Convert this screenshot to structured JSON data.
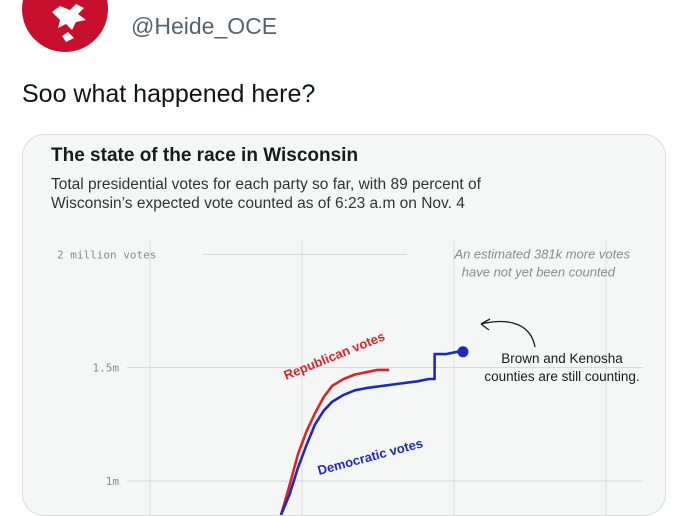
{
  "tweet": {
    "handle": "@Heide_OCE",
    "text": "Soo what happened here?"
  },
  "colors": {
    "avatar": "#c8102e",
    "republican": "#d62728",
    "democratic": "#1f2bb5"
  },
  "chart_data": {
    "type": "line",
    "title": "The state of the race in Wisconsin",
    "subtitle_line1": "Total presidential votes for each party so far, with 89 percent of",
    "subtitle_line2": "Wisconsin’s expected vote counted as of 6:23 a.m on Nov. 4",
    "y_ticks": [
      {
        "value": 2.0,
        "label": "2 million votes"
      },
      {
        "value": 1.5,
        "label": "1.5m"
      },
      {
        "value": 1.0,
        "label": "1m"
      }
    ],
    "ylim": [
      0.85,
      2.05
    ],
    "xlim": [
      0,
      100
    ],
    "grid": true,
    "note_line1": "An estimated 381k more votes",
    "note_line2": "have not yet been counted",
    "callout_line1": "Brown and Kenosha",
    "callout_line2": "counties are still counting.",
    "series": [
      {
        "name": "Republican votes",
        "color": "#d62728",
        "points": [
          [
            0,
            0.85
          ],
          [
            3,
            0.98
          ],
          [
            6,
            1.12
          ],
          [
            9,
            1.22
          ],
          [
            12,
            1.3
          ],
          [
            15,
            1.37
          ],
          [
            18,
            1.42
          ],
          [
            22,
            1.45
          ],
          [
            26,
            1.47
          ],
          [
            30,
            1.48
          ],
          [
            34,
            1.49
          ],
          [
            38,
            1.49
          ]
        ]
      },
      {
        "name": "Democratic votes",
        "color": "#1f2bb5",
        "points": [
          [
            0,
            0.85
          ],
          [
            3,
            0.94
          ],
          [
            6,
            1.06
          ],
          [
            9,
            1.16
          ],
          [
            12,
            1.25
          ],
          [
            15,
            1.31
          ],
          [
            18,
            1.35
          ],
          [
            22,
            1.38
          ],
          [
            26,
            1.4
          ],
          [
            30,
            1.41
          ],
          [
            36,
            1.42
          ],
          [
            42,
            1.43
          ],
          [
            48,
            1.44
          ],
          [
            52,
            1.45
          ],
          [
            54,
            1.45
          ],
          [
            54,
            1.56
          ],
          [
            58,
            1.56
          ],
          [
            62,
            1.57
          ],
          [
            64,
            1.57
          ]
        ]
      }
    ]
  }
}
